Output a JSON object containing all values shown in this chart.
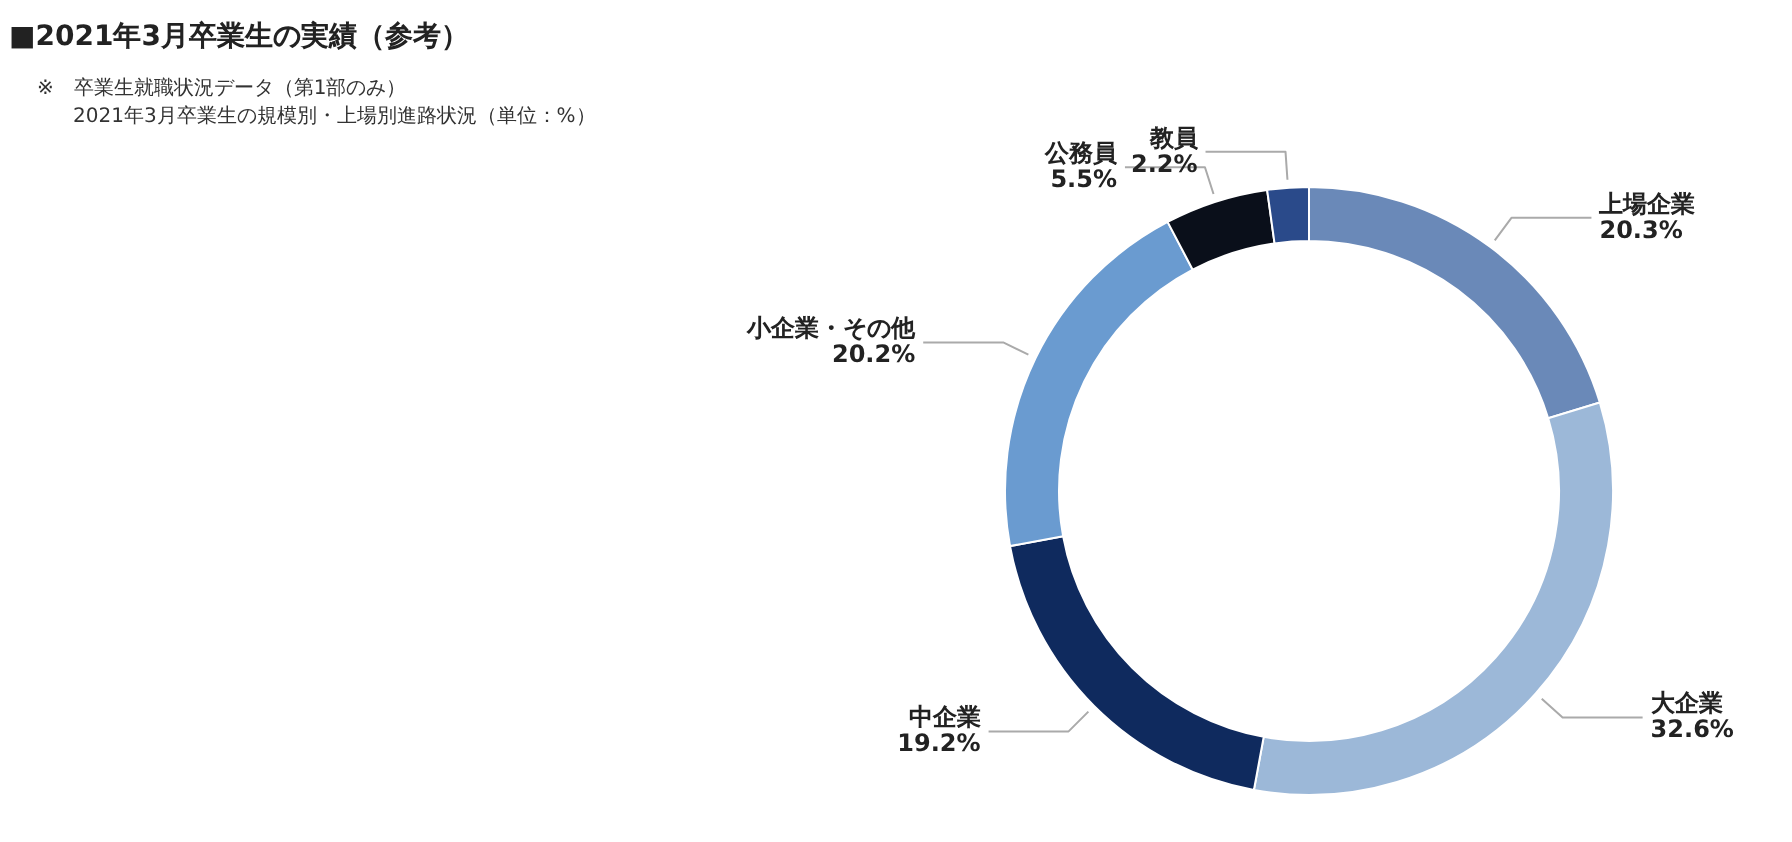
{
  "chart_data": {
    "type": "donut",
    "title": "■2021年3月卒業生の実績（参考）",
    "annotations": [
      "※　卒業生就職状況データ（第1部のみ）",
      "2021年3月卒業生の規模別・上場別進路状況（単位：%）"
    ],
    "categories": [
      "上場企業",
      "大企業",
      "中企業",
      "小企業・その他",
      "公務員",
      "教員"
    ],
    "values": [
      20.3,
      32.6,
      19.2,
      20.2,
      5.5,
      2.2
    ],
    "value_labels": [
      "20.3%",
      "32.6%",
      "19.2%",
      "20.2%",
      "5.5%",
      "2.2%"
    ],
    "colors": [
      "#6a89b8",
      "#9cb8d8",
      "#0f2a5e",
      "#6a9bd0",
      "#0a0f1a",
      "#2a4a8a"
    ]
  }
}
